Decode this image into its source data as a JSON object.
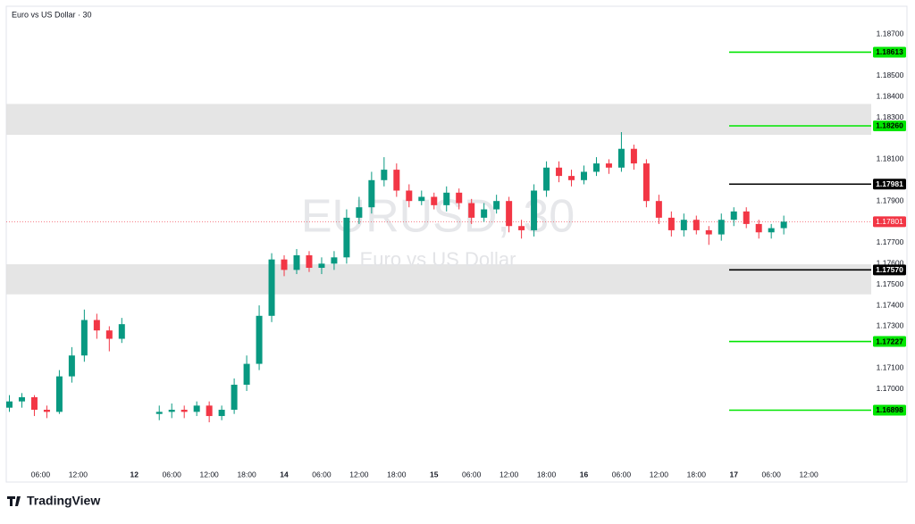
{
  "chart_data": {
    "type": "candlestick",
    "title": "Euro vs US Dollar · 30",
    "watermark": "EURUSD, 30",
    "watermark_subtitle": "Euro vs US Dollar",
    "brand": "TradingView",
    "up_color": "#089981",
    "down_color": "#f23645",
    "series": [
      {
        "name": "EURUSD",
        "x": [
          1,
          3,
          5,
          7,
          9,
          11,
          13,
          15,
          17,
          19,
          25,
          27,
          29,
          31,
          33,
          35,
          37,
          39,
          41,
          43,
          45,
          47,
          49,
          51,
          53,
          55,
          57,
          59,
          61,
          63,
          65,
          67,
          69,
          71,
          73,
          75,
          77,
          79,
          81,
          83,
          85,
          87,
          89,
          91,
          93,
          95,
          97,
          99,
          101,
          103,
          105,
          107,
          109,
          111,
          113,
          115,
          117,
          119,
          121,
          123,
          125
        ],
        "open": [
          1.1691,
          1.1694,
          1.1696,
          1.169,
          1.1689,
          1.1706,
          1.1716,
          1.1733,
          1.1728,
          1.1724,
          1.1688,
          1.1689,
          1.169,
          1.1689,
          1.1692,
          1.1687,
          1.169,
          1.1702,
          1.1712,
          1.1735,
          1.1762,
          1.1757,
          1.1764,
          1.1758,
          1.176,
          1.1763,
          1.1782,
          1.1787,
          1.18,
          1.1805,
          1.1795,
          1.179,
          1.1792,
          1.1788,
          1.1794,
          1.1789,
          1.1782,
          1.1786,
          1.179,
          1.1778,
          1.1776,
          1.1795,
          1.1806,
          1.1802,
          1.18,
          1.1804,
          1.1808,
          1.1806,
          1.1815,
          1.1808,
          1.179,
          1.1782,
          1.1776,
          1.1781,
          1.1776,
          1.1774,
          1.1781,
          1.1785,
          1.1779,
          1.1775,
          1.1777
        ],
        "high": [
          1.1697,
          1.1698,
          1.1697,
          1.1692,
          1.1709,
          1.172,
          1.1738,
          1.1736,
          1.173,
          1.1734,
          1.1692,
          1.1693,
          1.1692,
          1.1694,
          1.1694,
          1.1692,
          1.1705,
          1.1716,
          1.174,
          1.1765,
          1.1764,
          1.1767,
          1.1766,
          1.1763,
          1.1766,
          1.1786,
          1.1792,
          1.1804,
          1.1811,
          1.1808,
          1.1798,
          1.1795,
          1.1794,
          1.1797,
          1.1796,
          1.1791,
          1.1789,
          1.1793,
          1.1792,
          1.1781,
          1.1798,
          1.1809,
          1.1809,
          1.1805,
          1.1807,
          1.1811,
          1.181,
          1.1823,
          1.1817,
          1.181,
          1.1793,
          1.1785,
          1.1784,
          1.1783,
          1.1778,
          1.1784,
          1.1787,
          1.1787,
          1.1781,
          1.1779,
          1.1783
        ],
        "low": [
          1.1689,
          1.1691,
          1.1687,
          1.1686,
          1.1688,
          1.1703,
          1.1713,
          1.1724,
          1.1718,
          1.1722,
          1.1685,
          1.1686,
          1.1686,
          1.1687,
          1.1684,
          1.1685,
          1.1688,
          1.1699,
          1.1709,
          1.1732,
          1.1754,
          1.1755,
          1.1756,
          1.1755,
          1.1757,
          1.176,
          1.1779,
          1.1784,
          1.1797,
          1.1792,
          1.1787,
          1.1788,
          1.1786,
          1.1785,
          1.1786,
          1.1779,
          1.178,
          1.1784,
          1.1775,
          1.1772,
          1.1773,
          1.1792,
          1.1799,
          1.1797,
          1.1798,
          1.1802,
          1.1803,
          1.1804,
          1.1805,
          1.1787,
          1.1779,
          1.1773,
          1.1773,
          1.1774,
          1.1769,
          1.1771,
          1.1778,
          1.1777,
          1.1772,
          1.1772,
          1.1774
        ],
        "close": [
          1.1694,
          1.1696,
          1.169,
          1.1689,
          1.1706,
          1.1716,
          1.1733,
          1.1728,
          1.1724,
          1.1731,
          1.1689,
          1.169,
          1.1689,
          1.1692,
          1.1687,
          1.169,
          1.1702,
          1.1712,
          1.1735,
          1.1762,
          1.1757,
          1.1764,
          1.1758,
          1.176,
          1.1763,
          1.1782,
          1.1787,
          1.18,
          1.1805,
          1.1795,
          1.179,
          1.1792,
          1.1788,
          1.1794,
          1.1789,
          1.1782,
          1.1786,
          1.179,
          1.1778,
          1.1776,
          1.1795,
          1.1806,
          1.1802,
          1.18,
          1.1804,
          1.1808,
          1.1806,
          1.1815,
          1.1808,
          1.179,
          1.1782,
          1.1776,
          1.1781,
          1.1776,
          1.1774,
          1.1781,
          1.1785,
          1.1779,
          1.1775,
          1.1777,
          1.17801
        ]
      }
    ],
    "xlim": [
      0.5,
      139
    ],
    "xticks": [
      {
        "value": 6,
        "label": "06:00"
      },
      {
        "value": 12,
        "label": "12:00"
      },
      12,
      {
        "value": 27,
        "label": "06:00"
      },
      {
        "value": 33,
        "label": "12:00"
      },
      {
        "value": 39,
        "label": "18:00"
      },
      14,
      {
        "value": 51,
        "label": "06:00"
      },
      {
        "value": 57,
        "label": "12:00"
      },
      {
        "value": 63,
        "label": "18:00"
      },
      15,
      {
        "value": 75,
        "label": "06:00"
      },
      {
        "value": 81,
        "label": "12:00"
      },
      {
        "value": 87,
        "label": "18:00"
      },
      16,
      {
        "value": 99,
        "label": "06:00"
      },
      {
        "value": 105,
        "label": "12:00"
      },
      {
        "value": 111,
        "label": "18:00"
      },
      17,
      {
        "value": 123,
        "label": "06:00"
      },
      {
        "value": 129,
        "label": "12:00"
      }
    ],
    "xtick_positions": [
      6,
      12,
      21,
      27,
      33,
      39,
      45,
      51,
      57,
      63,
      69,
      75,
      81,
      87,
      93,
      99,
      105,
      111,
      117,
      123,
      129
    ],
    "ylim": [
      1.16635,
      1.18833
    ],
    "yticks": [
      {
        "value": 1.187,
        "label": "1.18700"
      },
      {
        "value": 1.185,
        "label": "1.18500"
      },
      {
        "value": 1.184,
        "label": "1.18400"
      },
      {
        "value": 1.183,
        "label": "1.18300"
      },
      {
        "value": 1.181,
        "label": "1.18100"
      },
      {
        "value": 1.179,
        "label": "1.17900"
      },
      {
        "value": 1.177,
        "label": "1.17700"
      },
      {
        "value": 1.176,
        "label": "1.17600"
      },
      {
        "value": 1.175,
        "label": "1.17500"
      },
      {
        "value": 1.174,
        "label": "1.17400"
      },
      {
        "value": 1.173,
        "label": "1.17300"
      },
      {
        "value": 1.171,
        "label": "1.17100"
      },
      {
        "value": 1.17,
        "label": "1.17000"
      }
    ],
    "zones": [
      {
        "from": 1.18217,
        "to": 1.18365
      },
      {
        "from": 1.17453,
        "to": 1.17597
      }
    ],
    "levels": [
      {
        "value": 1.18613,
        "label": "1.18613",
        "color": "#00e600"
      },
      {
        "value": 1.1826,
        "label": "1.18260",
        "color": "#00e600"
      },
      {
        "value": 1.17981,
        "label": "1.17981",
        "color": "#000000"
      },
      {
        "value": 1.1757,
        "label": "1.17570",
        "color": "#000000"
      },
      {
        "value": 1.17227,
        "label": "1.17227",
        "color": "#00e600"
      },
      {
        "value": 1.16898,
        "label": "1.16898",
        "color": "#00e600"
      }
    ],
    "last_price": {
      "value": 1.17801,
      "label": "1.17801",
      "color": "#f23645"
    }
  }
}
